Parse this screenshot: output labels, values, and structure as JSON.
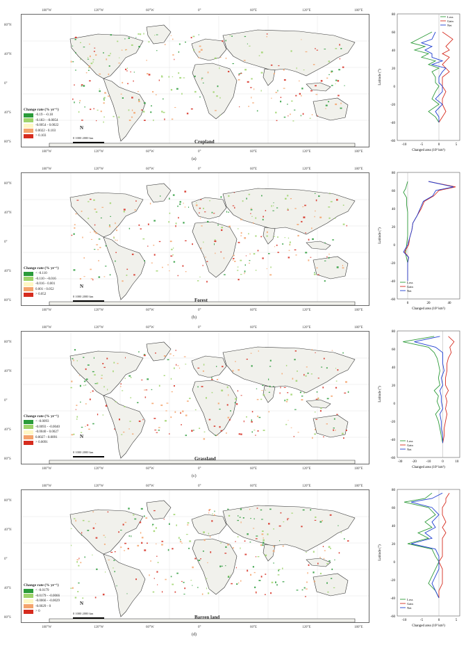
{
  "lon_ticks": [
    "180°W",
    "120°W",
    "60°W",
    "0°",
    "60°E",
    "120°E",
    "180°E"
  ],
  "lat_ticks_map": [
    "80°N",
    "40°N",
    "0°",
    "40°S",
    "80°S"
  ],
  "colors": {
    "gain": "#2e9b3a",
    "loss": "#d62c1f",
    "net": "#1f3fd1",
    "land": "#f1f1ec",
    "border": "#333333",
    "c1": "#2a9b3a",
    "c2": "#9ed36b",
    "c3": "#fff7c5",
    "c4": "#f4a36b",
    "c5": "#d62c1f"
  },
  "panels": [
    {
      "id": "a",
      "title": "Cropland",
      "sub": "(a)",
      "legend_title": "Change rate (% yr⁻¹)",
      "legend_items": [
        "-0.19 - -0.18",
        "-0.183 - -0.0054",
        "-0.0054 - 0.0022",
        "0.0022 - 0.103",
        "> 0.103"
      ],
      "scale_text": "0   1000  2000 km",
      "north": "N"
    },
    {
      "id": "b",
      "title": "Forest",
      "sub": "(b)",
      "legend_title": "Change rate (% yr⁻¹)",
      "legend_items": [
        "< -0.110",
        "-0.110 - -0.016",
        "-0.016 - 0.001",
        "0.001 - 0.052",
        "> 0.052"
      ],
      "scale_text": "0   1000  2000 km",
      "north": "N"
    },
    {
      "id": "c",
      "title": "Grassland",
      "sub": "(c)",
      "legend_title": "Change rate (% yr⁻¹)",
      "legend_items": [
        "< -0.0093",
        "-0.0093 - -0.0040",
        "-0.0040 - 0.0027",
        "0.0027 - 0.0091",
        "> 0.0091"
      ],
      "scale_text": "0   1000  2000 km",
      "north": "N"
    },
    {
      "id": "d",
      "title": "Barren land",
      "sub": "(d)",
      "legend_title": "Change rate (% yr⁻¹)",
      "legend_items": [
        "< -0.0179",
        "-0.0179 - -0.0066",
        "-0.0066 - -0.0029",
        "-0.0029 - 0",
        "> 0"
      ],
      "scale_text": "0   1000  2000 km",
      "north": "N"
    }
  ],
  "chart_data": [
    {
      "type": "line",
      "panel": "a",
      "xlabel": "Changed area (10³ km²)",
      "ylabel": "Latitude (°)",
      "xlim": [
        -12,
        6
      ],
      "xticks": [
        -10,
        -5,
        0,
        5
      ],
      "ylim": [
        -60,
        80
      ],
      "yticks": [
        80,
        60,
        40,
        20,
        0,
        -20,
        -40,
        -60
      ],
      "series": [
        {
          "name": "Loss",
          "color": "#2e9b3a",
          "points": [
            [
              -2,
              60
            ],
            [
              -6,
              52
            ],
            [
              -8,
              48
            ],
            [
              -4,
              44
            ],
            [
              -7,
              40
            ],
            [
              -3,
              36
            ],
            [
              -5,
              32
            ],
            [
              -1,
              28
            ],
            [
              -3,
              24
            ],
            [
              0,
              20
            ],
            [
              -2,
              16
            ],
            [
              -1,
              10
            ],
            [
              -1,
              4
            ],
            [
              0,
              0
            ],
            [
              -1,
              -6
            ],
            [
              -2,
              -14
            ],
            [
              0,
              -20
            ],
            [
              -3,
              -28
            ],
            [
              -1,
              -34
            ],
            [
              0,
              -40
            ]
          ]
        },
        {
          "name": "Gain",
          "color": "#d62c1f",
          "points": [
            [
              1,
              60
            ],
            [
              4,
              52
            ],
            [
              3,
              48
            ],
            [
              2,
              44
            ],
            [
              3,
              40
            ],
            [
              1,
              36
            ],
            [
              3,
              32
            ],
            [
              2,
              28
            ],
            [
              1,
              24
            ],
            [
              2,
              20
            ],
            [
              3,
              16
            ],
            [
              1,
              10
            ],
            [
              1,
              4
            ],
            [
              1,
              0
            ],
            [
              2,
              -6
            ],
            [
              1,
              -14
            ],
            [
              1,
              -20
            ],
            [
              2,
              -28
            ],
            [
              1,
              -34
            ],
            [
              0,
              -40
            ]
          ]
        },
        {
          "name": "Net",
          "color": "#1f3fd1",
          "points": [
            [
              -1,
              60
            ],
            [
              -2,
              52
            ],
            [
              -5,
              48
            ],
            [
              -2,
              44
            ],
            [
              -4,
              40
            ],
            [
              -2,
              36
            ],
            [
              -2,
              32
            ],
            [
              1,
              28
            ],
            [
              -2,
              24
            ],
            [
              2,
              20
            ],
            [
              1,
              16
            ],
            [
              0,
              10
            ],
            [
              0,
              4
            ],
            [
              1,
              0
            ],
            [
              1,
              -6
            ],
            [
              -1,
              -14
            ],
            [
              1,
              -20
            ],
            [
              -1,
              -28
            ],
            [
              0,
              -34
            ],
            [
              0,
              -40
            ]
          ]
        }
      ]
    },
    {
      "type": "line",
      "panel": "b",
      "xlabel": "Changed area (10³ km²)",
      "ylabel": "Latitude (°)",
      "xlim": [
        -10,
        50
      ],
      "xticks": [
        0,
        20,
        40
      ],
      "ylim": [
        -60,
        80
      ],
      "yticks": [
        80,
        60,
        40,
        20,
        0,
        -20,
        -40,
        -60
      ],
      "series": [
        {
          "name": "Loss",
          "color": "#2e9b3a",
          "points": [
            [
              0,
              70
            ],
            [
              -2,
              62
            ],
            [
              -4,
              58
            ],
            [
              -1,
              52
            ],
            [
              -1,
              44
            ],
            [
              0,
              36
            ],
            [
              0,
              28
            ],
            [
              0,
              20
            ],
            [
              0,
              10
            ],
            [
              -1,
              0
            ],
            [
              -2,
              -10
            ],
            [
              0,
              -20
            ],
            [
              0,
              -30
            ],
            [
              0,
              -40
            ]
          ]
        },
        {
          "name": "Gain",
          "color": "#d62c1f",
          "points": [
            [
              20,
              70
            ],
            [
              46,
              64
            ],
            [
              30,
              60
            ],
            [
              25,
              54
            ],
            [
              16,
              48
            ],
            [
              13,
              40
            ],
            [
              9,
              32
            ],
            [
              5,
              24
            ],
            [
              4,
              16
            ],
            [
              2,
              8
            ],
            [
              1,
              0
            ],
            [
              -3,
              -8
            ],
            [
              1,
              -14
            ],
            [
              0,
              -20
            ],
            [
              0,
              -30
            ],
            [
              0,
              -40
            ]
          ]
        },
        {
          "name": "Net",
          "color": "#1f3fd1",
          "points": [
            [
              20,
              70
            ],
            [
              44,
              64
            ],
            [
              27,
              60
            ],
            [
              24,
              54
            ],
            [
              15,
              48
            ],
            [
              12,
              40
            ],
            [
              9,
              32
            ],
            [
              5,
              24
            ],
            [
              4,
              16
            ],
            [
              2,
              8
            ],
            [
              0,
              0
            ],
            [
              -4,
              -8
            ],
            [
              1,
              -14
            ],
            [
              0,
              -20
            ],
            [
              0,
              -30
            ],
            [
              0,
              -40
            ]
          ]
        }
      ]
    },
    {
      "type": "line",
      "panel": "c",
      "xlabel": "Changed area (10³ km²)",
      "ylabel": "Latitude (°)",
      "xlim": [
        -32,
        12
      ],
      "xticks": [
        -30,
        -20,
        -10,
        0,
        10
      ],
      "ylim": [
        -60,
        80
      ],
      "yticks": [
        80,
        60,
        40,
        20,
        0,
        -20,
        -40,
        -60
      ],
      "series": [
        {
          "name": "Loss",
          "color": "#2e9b3a",
          "points": [
            [
              -6,
              74
            ],
            [
              -28,
              68
            ],
            [
              -10,
              62
            ],
            [
              -6,
              56
            ],
            [
              -4,
              50
            ],
            [
              -3,
              44
            ],
            [
              -2,
              36
            ],
            [
              -3,
              28
            ],
            [
              -2,
              20
            ],
            [
              -6,
              14
            ],
            [
              -3,
              8
            ],
            [
              -4,
              2
            ],
            [
              -2,
              -6
            ],
            [
              -5,
              -12
            ],
            [
              -3,
              -20
            ],
            [
              -2,
              -28
            ],
            [
              -1,
              -36
            ],
            [
              0,
              -44
            ]
          ]
        },
        {
          "name": "Gain",
          "color": "#d62c1f",
          "points": [
            [
              4,
              74
            ],
            [
              8,
              68
            ],
            [
              5,
              62
            ],
            [
              6,
              56
            ],
            [
              4,
              50
            ],
            [
              3,
              44
            ],
            [
              3,
              36
            ],
            [
              2,
              28
            ],
            [
              2,
              20
            ],
            [
              4,
              14
            ],
            [
              2,
              8
            ],
            [
              3,
              2
            ],
            [
              2,
              -6
            ],
            [
              3,
              -12
            ],
            [
              2,
              -20
            ],
            [
              1,
              -28
            ],
            [
              1,
              -36
            ],
            [
              0,
              -44
            ]
          ]
        },
        {
          "name": "Net",
          "color": "#1f3fd1",
          "points": [
            [
              -2,
              74
            ],
            [
              -20,
              68
            ],
            [
              -5,
              62
            ],
            [
              0,
              56
            ],
            [
              0,
              50
            ],
            [
              0,
              44
            ],
            [
              1,
              36
            ],
            [
              -1,
              28
            ],
            [
              0,
              20
            ],
            [
              -2,
              14
            ],
            [
              -1,
              8
            ],
            [
              -1,
              2
            ],
            [
              0,
              -6
            ],
            [
              -2,
              -12
            ],
            [
              -1,
              -20
            ],
            [
              -1,
              -28
            ],
            [
              0,
              -36
            ],
            [
              0,
              -44
            ]
          ]
        }
      ]
    },
    {
      "type": "line",
      "panel": "d",
      "xlabel": "Changed area (10³ km²)",
      "ylabel": "Latitude (°)",
      "xlim": [
        -12,
        6
      ],
      "xticks": [
        -10,
        -5,
        0,
        5
      ],
      "ylim": [
        -60,
        80
      ],
      "yticks": [
        80,
        60,
        40,
        20,
        0,
        -20,
        -40,
        -60
      ],
      "series": [
        {
          "name": "Loss",
          "color": "#2e9b3a",
          "points": [
            [
              -2,
              76
            ],
            [
              -4,
              70
            ],
            [
              -10,
              66
            ],
            [
              -3,
              60
            ],
            [
              -1,
              52
            ],
            [
              -4,
              44
            ],
            [
              -2,
              38
            ],
            [
              -6,
              32
            ],
            [
              -3,
              26
            ],
            [
              -9,
              20
            ],
            [
              -2,
              14
            ],
            [
              -1,
              6
            ],
            [
              0,
              0
            ],
            [
              -1,
              -8
            ],
            [
              -2,
              -16
            ],
            [
              -3,
              -24
            ],
            [
              -1,
              -32
            ],
            [
              0,
              -40
            ]
          ]
        },
        {
          "name": "Gain",
          "color": "#d62c1f",
          "points": [
            [
              3,
              76
            ],
            [
              2,
              70
            ],
            [
              2,
              66
            ],
            [
              1,
              60
            ],
            [
              1,
              52
            ],
            [
              2,
              44
            ],
            [
              1,
              38
            ],
            [
              2,
              32
            ],
            [
              1,
              26
            ],
            [
              1,
              20
            ],
            [
              1,
              14
            ],
            [
              1,
              6
            ],
            [
              0,
              0
            ],
            [
              1,
              -8
            ],
            [
              1,
              -16
            ],
            [
              1,
              -24
            ],
            [
              0,
              -32
            ],
            [
              0,
              -40
            ]
          ]
        },
        {
          "name": "Net",
          "color": "#1f3fd1",
          "points": [
            [
              1,
              76
            ],
            [
              -2,
              70
            ],
            [
              -8,
              66
            ],
            [
              -2,
              60
            ],
            [
              0,
              52
            ],
            [
              -2,
              44
            ],
            [
              -1,
              38
            ],
            [
              -4,
              32
            ],
            [
              -2,
              26
            ],
            [
              -8,
              20
            ],
            [
              -1,
              14
            ],
            [
              0,
              6
            ],
            [
              0,
              0
            ],
            [
              0,
              -8
            ],
            [
              -1,
              -16
            ],
            [
              -2,
              -24
            ],
            [
              -1,
              -32
            ],
            [
              0,
              -40
            ]
          ]
        }
      ]
    }
  ]
}
